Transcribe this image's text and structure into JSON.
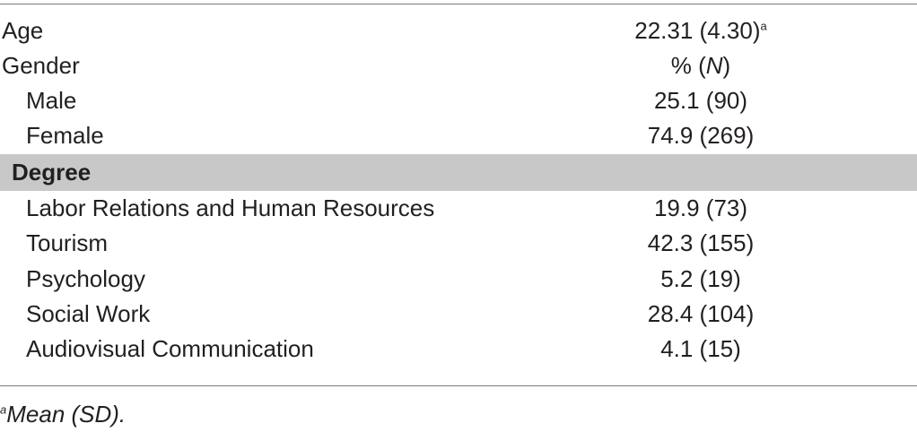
{
  "table": {
    "rows": [
      {
        "label": "Age",
        "value": "22.31 (4.30)",
        "value_sup": "a"
      },
      {
        "label": "Gender",
        "value_prefix": "% (",
        "value_italic": "N",
        "value_suffix": ")"
      },
      {
        "label": "Male",
        "value": "25.1 (90)"
      },
      {
        "label": "Female",
        "value": "74.9 (269)"
      },
      {
        "label": "Degree"
      },
      {
        "label": "Labor Relations and Human Resources",
        "value": "19.9 (73)"
      },
      {
        "label": "Tourism",
        "value": "42.3 (155)"
      },
      {
        "label": "Psychology",
        "value": "5.2 (19)"
      },
      {
        "label": "Social Work",
        "value": "28.4 (104)"
      },
      {
        "label": "Audiovisual Communication",
        "value": "4.1 (15)"
      }
    ]
  },
  "footnote": {
    "sup": "a",
    "text": "Mean (SD)."
  },
  "colors": {
    "section_bg": "#c8c8c8",
    "rule": "#7a7a7a",
    "text": "#231f20"
  }
}
